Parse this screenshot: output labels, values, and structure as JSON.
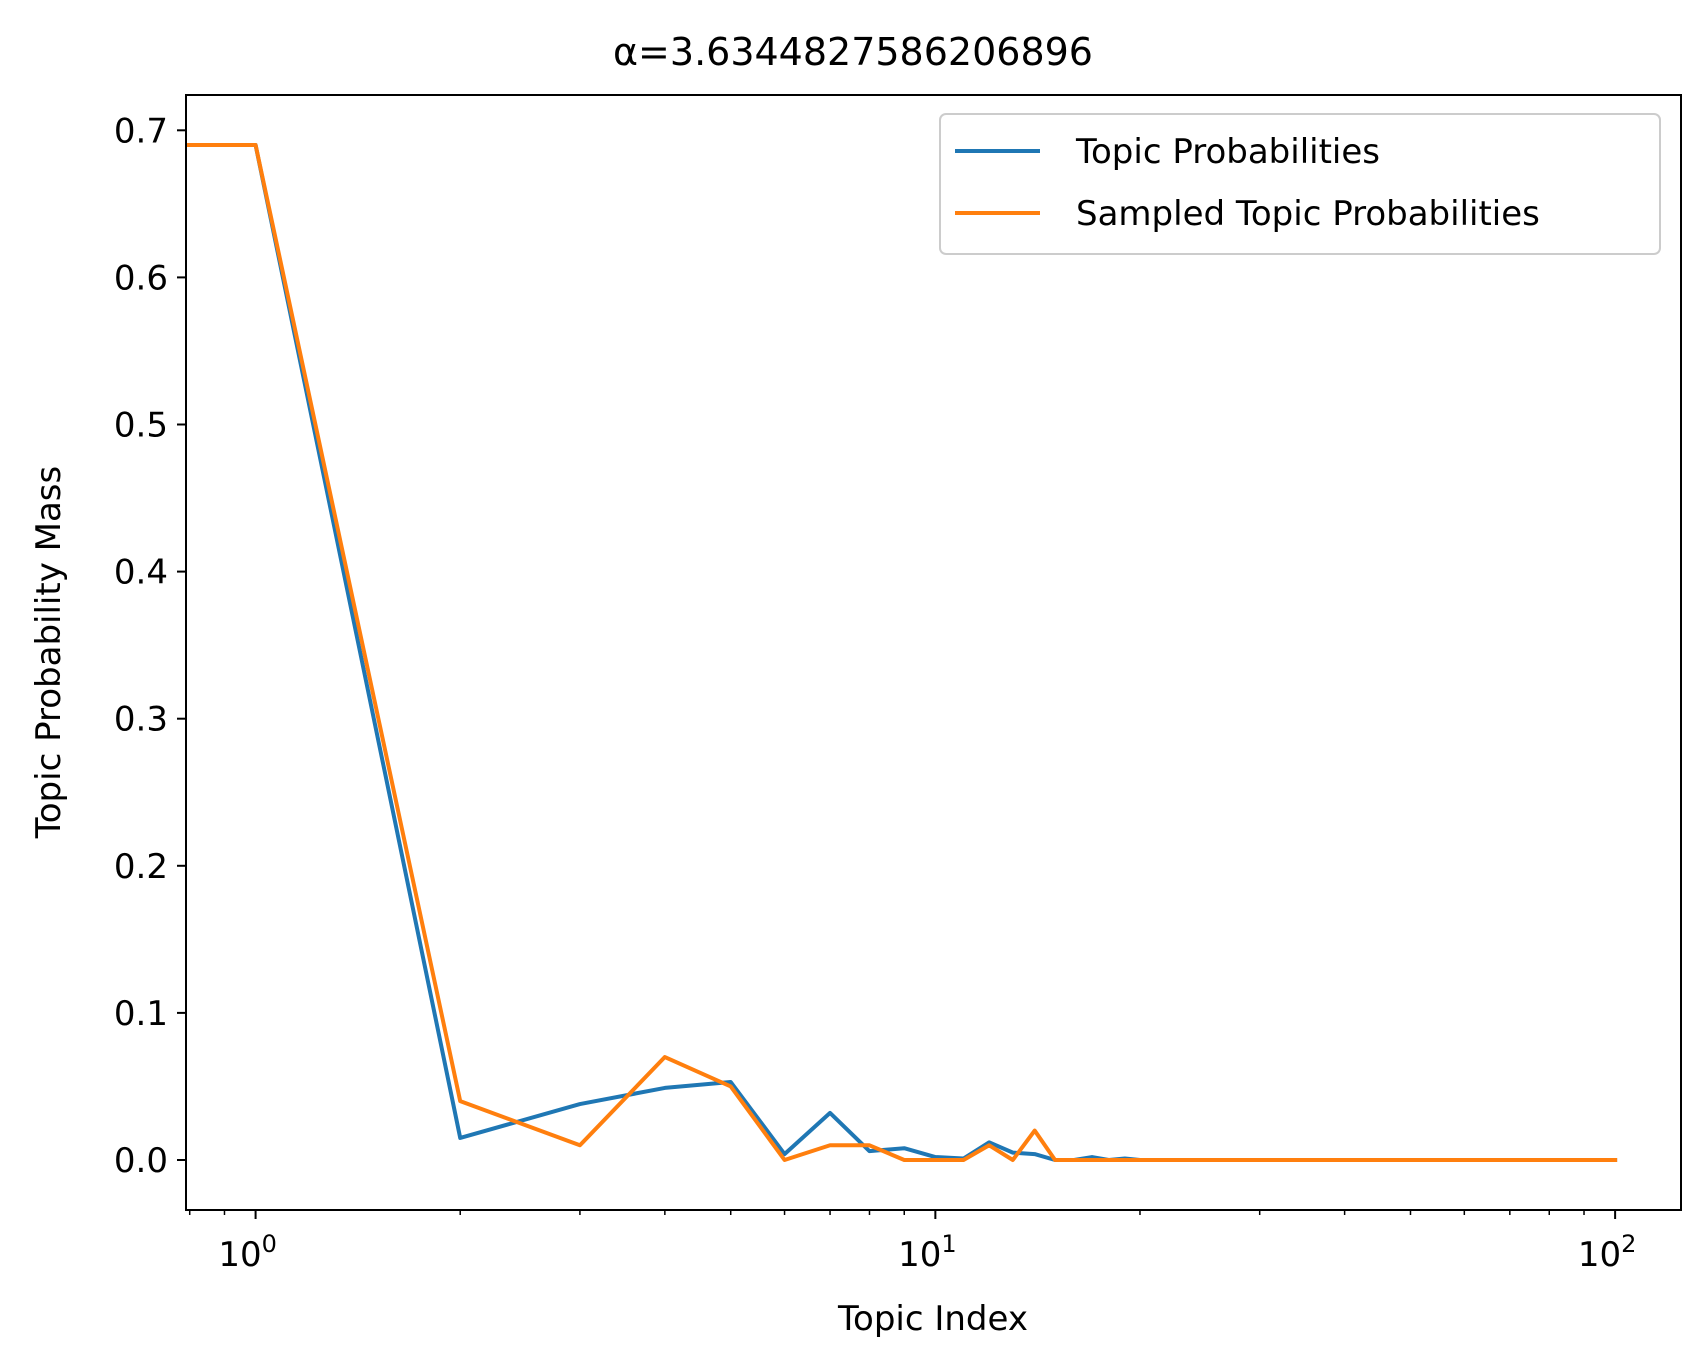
{
  "chart_data": {
    "type": "line",
    "title": "α=3.6344827586206896",
    "xlabel": "Topic Index",
    "ylabel": "Topic Probability Mass",
    "x_scale": "log",
    "xlim": [
      0.79,
      125
    ],
    "ylim": [
      -0.034,
      0.724
    ],
    "grid": false,
    "legend_position": "top-right",
    "x_ticks": [
      {
        "value": 1,
        "base": "10",
        "exp": "0"
      },
      {
        "value": 10,
        "base": "10",
        "exp": "1"
      },
      {
        "value": 100,
        "base": "10",
        "exp": "2"
      }
    ],
    "y_ticks": [
      "0.0",
      "0.1",
      "0.2",
      "0.3",
      "0.4",
      "0.5",
      "0.6",
      "0.7"
    ],
    "x": [
      0,
      1,
      2,
      3,
      4,
      5,
      6,
      7,
      8,
      9,
      10,
      11,
      12,
      13,
      14,
      15,
      16,
      17,
      18,
      19,
      20,
      21,
      22,
      23,
      24,
      25,
      26,
      27,
      28,
      29,
      30,
      31,
      32,
      33,
      34,
      35,
      36,
      37,
      38,
      39,
      40,
      41,
      42,
      43,
      44,
      45,
      46,
      47,
      48,
      49,
      50,
      51,
      52,
      53,
      54,
      55,
      56,
      57,
      58,
      59,
      60,
      61,
      62,
      63,
      64,
      65,
      66,
      67,
      68,
      69,
      70,
      71,
      72,
      73,
      74,
      75,
      76,
      77,
      78,
      79,
      80,
      81,
      82,
      83,
      84,
      85,
      86,
      87,
      88,
      89,
      90,
      91,
      92,
      93,
      94,
      95,
      96,
      97,
      98,
      99,
      100
    ],
    "series": [
      {
        "name": "Topic Probabilities",
        "color": "#1f77b4",
        "values": [
          0.69,
          0.69,
          0.015,
          0.038,
          0.049,
          0.053,
          0.004,
          0.032,
          0.006,
          0.008,
          0.002,
          0.001,
          0.012,
          0.005,
          0.004,
          0.0,
          0.0,
          0.002,
          0.0,
          0.001,
          0.0,
          0.0,
          0.0,
          0.0,
          0.0,
          0.0,
          0.0,
          0.0,
          0.0,
          0.0,
          0.0,
          0.0,
          0.0,
          0.0,
          0.0,
          0.0,
          0.0,
          0.0,
          0.0,
          0.0,
          0.0,
          0.0,
          0.0,
          0.0,
          0.0,
          0.0,
          0.0,
          0.0,
          0.0,
          0.0,
          0.0,
          0.0,
          0.0,
          0.0,
          0.0,
          0.0,
          0.0,
          0.0,
          0.0,
          0.0,
          0.0,
          0.0,
          0.0,
          0.0,
          0.0,
          0.0,
          0.0,
          0.0,
          0.0,
          0.0,
          0.0,
          0.0,
          0.0,
          0.0,
          0.0,
          0.0,
          0.0,
          0.0,
          0.0,
          0.0,
          0.0,
          0.0,
          0.0,
          0.0,
          0.0,
          0.0,
          0.0,
          0.0,
          0.0,
          0.0,
          0.0,
          0.0,
          0.0,
          0.0,
          0.0,
          0.0,
          0.0,
          0.0,
          0.0,
          0.0,
          0.0
        ]
      },
      {
        "name": "Sampled Topic Probabilities",
        "color": "#ff7f0e",
        "values": [
          0.69,
          0.69,
          0.04,
          0.01,
          0.07,
          0.05,
          0.0,
          0.01,
          0.01,
          0.0,
          0.0,
          0.0,
          0.01,
          0.0,
          0.02,
          0.0,
          0.0,
          0.0,
          0.0,
          0.0,
          0.0,
          0.0,
          0.0,
          0.0,
          0.0,
          0.0,
          0.0,
          0.0,
          0.0,
          0.0,
          0.0,
          0.0,
          0.0,
          0.0,
          0.0,
          0.0,
          0.0,
          0.0,
          0.0,
          0.0,
          0.0,
          0.0,
          0.0,
          0.0,
          0.0,
          0.0,
          0.0,
          0.0,
          0.0,
          0.0,
          0.0,
          0.0,
          0.0,
          0.0,
          0.0,
          0.0,
          0.0,
          0.0,
          0.0,
          0.0,
          0.0,
          0.0,
          0.0,
          0.0,
          0.0,
          0.0,
          0.0,
          0.0,
          0.0,
          0.0,
          0.0,
          0.0,
          0.0,
          0.0,
          0.0,
          0.0,
          0.0,
          0.0,
          0.0,
          0.0,
          0.0,
          0.0,
          0.0,
          0.0,
          0.0,
          0.0,
          0.0,
          0.0,
          0.0,
          0.0,
          0.0,
          0.0,
          0.0,
          0.0,
          0.0,
          0.0,
          0.0,
          0.0,
          0.0,
          0.0,
          0.0
        ]
      }
    ]
  }
}
